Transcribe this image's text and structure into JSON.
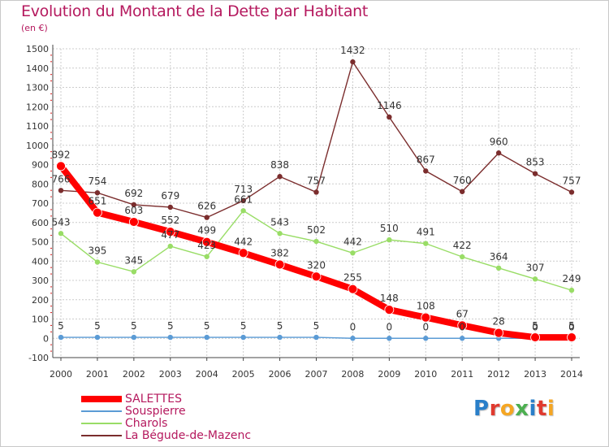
{
  "title": "Evolution du Montant de la Dette par Habitant",
  "unit": "(en €)",
  "logo": "Proxiti",
  "colors": {
    "title": "#b5195e",
    "axis": "#444444",
    "grid": "#cccccc",
    "label": "#333333",
    "logo": [
      "#2a7fc9",
      "#e03a2f",
      "#f5a623",
      "#4caf50",
      "#2a7fc9",
      "#e03a2f",
      "#f5a623"
    ]
  },
  "chart_data": {
    "type": "line",
    "title": "Evolution du Montant de la Dette par Habitant",
    "ylabel": "(en €)",
    "xlabel": "",
    "ylim": [
      -100,
      1500
    ],
    "yticks": [
      -100,
      0,
      100,
      200,
      300,
      400,
      500,
      600,
      700,
      800,
      900,
      1000,
      1100,
      1200,
      1300,
      1400,
      1500
    ],
    "categories": [
      "2000",
      "2001",
      "2002",
      "2003",
      "2004",
      "2005",
      "2006",
      "2007",
      "2008",
      "2009",
      "2010",
      "2011",
      "2012",
      "2013",
      "2014"
    ],
    "grid": true,
    "legend": "bottom-left",
    "series": [
      {
        "name": "La Bégude-de-Mazenc",
        "color": "#7b2d2d",
        "values": [
          766,
          754,
          692,
          679,
          626,
          713,
          838,
          757,
          1432,
          1146,
          867,
          760,
          960,
          853,
          757
        ],
        "labels": [
          "766",
          "754",
          "692",
          "679",
          "626",
          "713",
          "838",
          "757",
          "1432",
          "1146",
          "867",
          "760",
          "960",
          "853",
          "757"
        ]
      },
      {
        "name": "Charols",
        "color": "#99dd66",
        "values": [
          543,
          395,
          345,
          477,
          423,
          661,
          543,
          502,
          442,
          510,
          491,
          422,
          364,
          307,
          249
        ],
        "labels": [
          "543",
          "395",
          "345",
          "477",
          "423",
          "661",
          "543",
          "502",
          "442",
          "510",
          "491",
          "422",
          "364",
          "307",
          "249"
        ]
      },
      {
        "name": "Souspierre",
        "color": "#5b9bd5",
        "values": [
          5,
          5,
          5,
          5,
          5,
          5,
          5,
          5,
          0,
          0,
          0,
          0,
          0,
          0,
          0
        ],
        "labels": [
          "5",
          "5",
          "5",
          "5",
          "5",
          "5",
          "5",
          "5",
          "0",
          "0",
          "0",
          "0",
          "",
          "0",
          "0"
        ]
      },
      {
        "name": "SALETTES",
        "color": "#ff0000",
        "values": [
          892,
          651,
          603,
          552,
          499,
          442,
          382,
          320,
          255,
          148,
          108,
          67,
          28,
          5,
          5
        ],
        "labels": [
          "892",
          "651",
          "603",
          "552",
          "499",
          "442",
          "382",
          "320",
          "255",
          "148",
          "108",
          "67",
          "28",
          "5",
          "5"
        ]
      }
    ]
  },
  "legend_items": [
    {
      "label": "SALETTES",
      "color": "#ff0000"
    },
    {
      "label": "Souspierre",
      "color": "#5b9bd5"
    },
    {
      "label": "Charols",
      "color": "#99dd66"
    },
    {
      "label": "La Bégude-de-Mazenc",
      "color": "#7b2d2d"
    }
  ]
}
